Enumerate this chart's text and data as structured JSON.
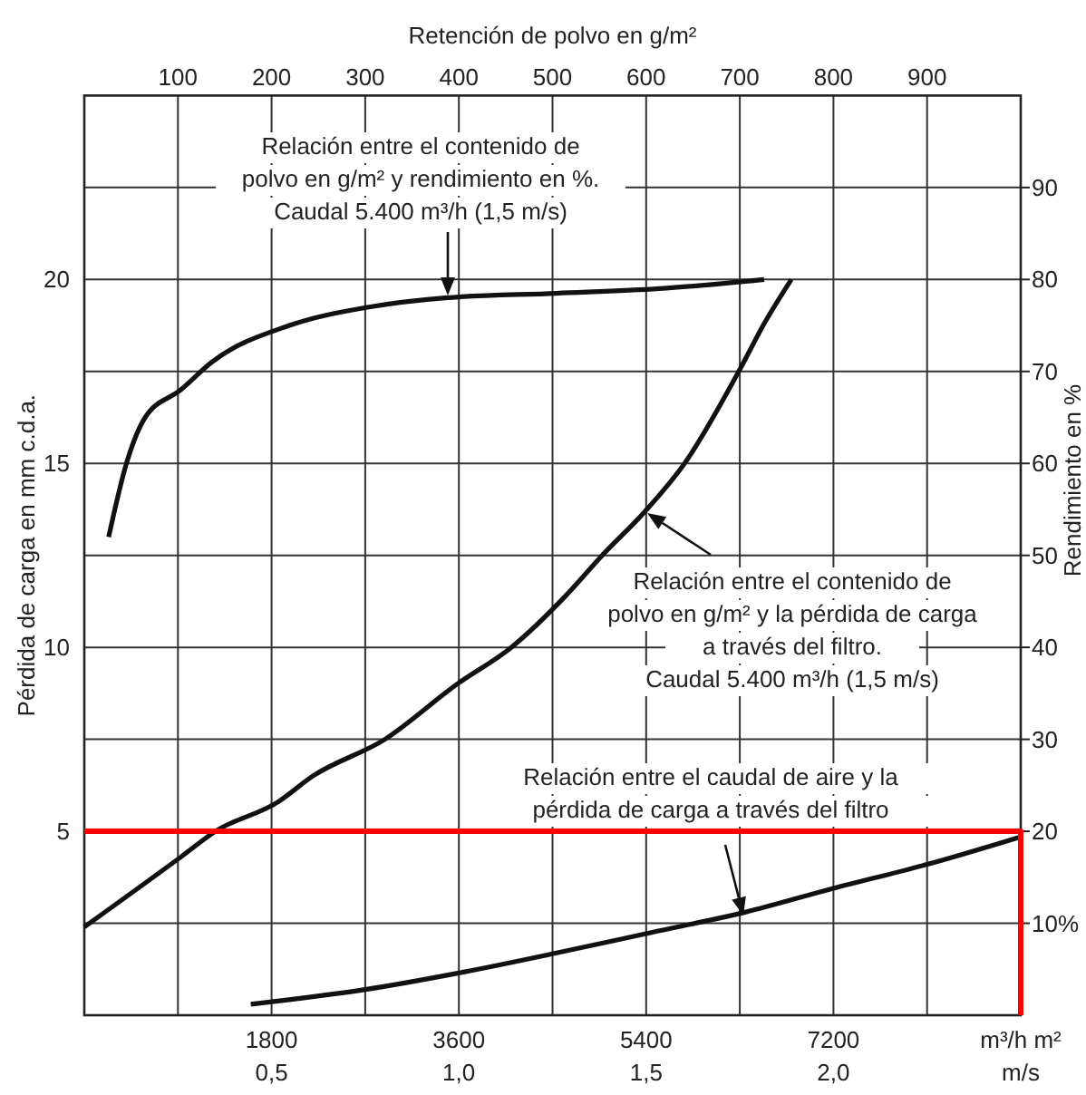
{
  "chart_data": [
    {
      "type": "line",
      "xlabel": "Retención de polvo en g/m²",
      "ylabel": "Pérdida de carga en mm c.d.a.",
      "y2label": "Rendimiento en %",
      "xlim": [
        0,
        1000
      ],
      "xticks": [
        100,
        200,
        300,
        400,
        500,
        600,
        700,
        800,
        900
      ],
      "ylim": [
        0,
        25
      ],
      "yticks": [
        5,
        10,
        15,
        20
      ],
      "y2lim": [
        0,
        100
      ],
      "y2ticks": [
        {
          "value": 10,
          "label": "10%"
        },
        20,
        30,
        40,
        50,
        60,
        70,
        80,
        90
      ],
      "grid": true,
      "series": [
        {
          "color": "#111111",
          "axis": "y2",
          "x": [
            26,
            45,
            65,
            103,
            136,
            219,
            304,
            385,
            504,
            614,
            726
          ],
          "values": [
            52,
            60,
            65,
            68,
            71,
            75,
            77,
            78,
            78.5,
            79,
            80
          ]
        },
        {
          "color": "#111111",
          "x": [
            0,
            103,
            140,
            207,
            244,
            321,
            398,
            456,
            514,
            553,
            599,
            641,
            701,
            726,
            755
          ],
          "values": [
            2.4,
            4.3,
            5.0,
            5.8,
            6.5,
            7.5,
            9.0,
            10.0,
            11.4,
            12.5,
            13.7,
            15.0,
            17.6,
            18.8,
            20.0
          ]
        }
      ],
      "annotations": [
        "Relación entre el contenido de\npolvo en g/m² y rendimiento en %.\nCaudal 5.400 m³/h (1,5 m/s)",
        "Relación entre el contenido de\npolvo en g/m² y la pérdida de carga\na través del filtro.\nCaudal 5.400 m³/h (1,5 m/s)"
      ]
    },
    {
      "type": "line",
      "xlabel": "m³/h m²",
      "x2label": "m/s",
      "xlim": [
        0,
        9000
      ],
      "xticks": [
        1800,
        3600,
        5400,
        7200
      ],
      "x2lim": [
        0,
        2.5
      ],
      "x2ticks": [
        {
          "value": 0.5,
          "label": "0,5"
        },
        {
          "value": 1.0,
          "label": "1,0"
        },
        {
          "value": 1.5,
          "label": "1,5"
        },
        {
          "value": 2.0,
          "label": "2,0"
        }
      ],
      "ylim": [
        0,
        25
      ],
      "tick_labels": "x",
      "series": [
        {
          "color": "#111111",
          "x": [
            1600,
            2700,
            3600,
            4550,
            5450,
            6350,
            7200,
            8100,
            9000
          ],
          "values": [
            0.3,
            0.7,
            1.15,
            1.7,
            2.25,
            2.8,
            3.45,
            4.1,
            4.85
          ]
        },
        {
          "color": "#ff0000",
          "x": [
            0,
            9000,
            9000
          ],
          "values": [
            5,
            5,
            0
          ]
        }
      ],
      "annotations": [
        "Relación entre el caudal de aire y la\npérdida de carga a través del filtro"
      ]
    }
  ]
}
